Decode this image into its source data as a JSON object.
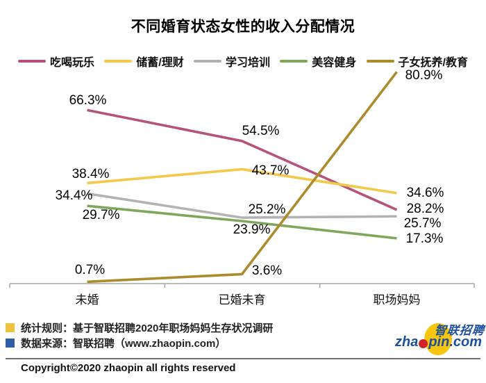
{
  "title": "不同婚育状态女性的收入分配情况",
  "chart_data": {
    "type": "line",
    "title": "不同婚育状态女性的收入分配情况",
    "categories": [
      "未婚",
      "已婚未育",
      "职场妈妈"
    ],
    "unit": "%",
    "ylim": [
      0,
      85
    ],
    "grid": false,
    "legend_position": "top",
    "series": [
      {
        "key": "eat-drink-play",
        "name": "吃喝玩乐",
        "color": "#b5537a",
        "values": [
          66.3,
          54.5,
          28.2
        ]
      },
      {
        "key": "savings-finance",
        "name": "储蓄/理财",
        "color": "#f3c84b",
        "values": [
          38.4,
          43.7,
          34.6
        ]
      },
      {
        "key": "learning-training",
        "name": "学习培训",
        "color": "#b3b3b3",
        "values": [
          34.4,
          25.2,
          25.7
        ]
      },
      {
        "key": "beauty-fitness",
        "name": "美容健身",
        "color": "#7ea75c",
        "values": [
          29.7,
          23.9,
          17.3
        ]
      },
      {
        "key": "child-education",
        "name": "子女抚养/教育",
        "color": "#ac8b2d",
        "values": [
          0.7,
          3.6,
          80.9
        ]
      }
    ],
    "axis_color": "#a6a6a6"
  },
  "notes": [
    {
      "bullet_color": "#f0c23c",
      "text": "统计规则：基于智联招聘2020年职场妈妈生存状况调研"
    },
    {
      "bullet_color": "#2b5ea7",
      "text": "数据来源：智联招聘（www.zhaopin.com）"
    }
  ],
  "copyright": "Copyright©2020  zhaopin all rights reserved",
  "logo": {
    "cn": "智联招聘",
    "domain_prefix": "zha",
    "domain_suffix": "pin.com",
    "colors": {
      "blue": "#1d4f9c",
      "yellow": "#f6c50f",
      "red": "#cf2229"
    }
  }
}
